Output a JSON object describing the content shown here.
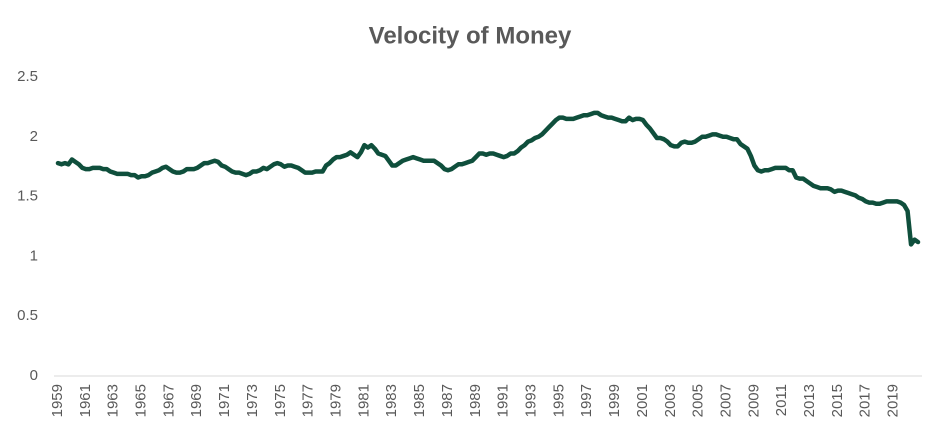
{
  "chart_data": {
    "type": "line",
    "title": "Velocity of Money",
    "categories": [
      "1959",
      null,
      null,
      null,
      null,
      null,
      null,
      null,
      "1961",
      null,
      null,
      null,
      null,
      null,
      null,
      null,
      "1963",
      null,
      null,
      null,
      null,
      null,
      null,
      null,
      "1965",
      null,
      null,
      null,
      null,
      null,
      null,
      null,
      "1967",
      null,
      null,
      null,
      null,
      null,
      null,
      null,
      "1969",
      null,
      null,
      null,
      null,
      null,
      null,
      null,
      "1971",
      null,
      null,
      null,
      null,
      null,
      null,
      null,
      "1973",
      null,
      null,
      null,
      null,
      null,
      null,
      null,
      "1975",
      null,
      null,
      null,
      null,
      null,
      null,
      null,
      "1977",
      null,
      null,
      null,
      null,
      null,
      null,
      null,
      "1979",
      null,
      null,
      null,
      null,
      null,
      null,
      null,
      "1981",
      null,
      null,
      null,
      null,
      null,
      null,
      null,
      "1983",
      null,
      null,
      null,
      null,
      null,
      null,
      null,
      "1985",
      null,
      null,
      null,
      null,
      null,
      null,
      null,
      "1987",
      null,
      null,
      null,
      null,
      null,
      null,
      null,
      "1989",
      null,
      null,
      null,
      null,
      null,
      null,
      null,
      "1991",
      null,
      null,
      null,
      null,
      null,
      null,
      null,
      "1993",
      null,
      null,
      null,
      null,
      null,
      null,
      null,
      "1995",
      null,
      null,
      null,
      null,
      null,
      null,
      null,
      "1997",
      null,
      null,
      null,
      null,
      null,
      null,
      null,
      "1999",
      null,
      null,
      null,
      null,
      null,
      null,
      null,
      "2001",
      null,
      null,
      null,
      null,
      null,
      null,
      null,
      "2003",
      null,
      null,
      null,
      null,
      null,
      null,
      null,
      "2005",
      null,
      null,
      null,
      null,
      null,
      null,
      null,
      "2007",
      null,
      null,
      null,
      null,
      null,
      null,
      null,
      "2009",
      null,
      null,
      null,
      null,
      null,
      null,
      null,
      "2011",
      null,
      null,
      null,
      null,
      null,
      null,
      null,
      "2013",
      null,
      null,
      null,
      null,
      null,
      null,
      null,
      "2015",
      null,
      null,
      null,
      null,
      null,
      null,
      null,
      "2017",
      null,
      null,
      null,
      null,
      null,
      null,
      null,
      "2019",
      null,
      null,
      null,
      null,
      null,
      null,
      null
    ],
    "series": [
      {
        "name": "Velocity of Money",
        "color": "#0f4f3c",
        "values": [
          1.78,
          1.77,
          1.78,
          1.77,
          1.81,
          1.79,
          1.77,
          1.74,
          1.73,
          1.73,
          1.74,
          1.74,
          1.74,
          1.73,
          1.73,
          1.71,
          1.7,
          1.69,
          1.69,
          1.69,
          1.69,
          1.68,
          1.68,
          1.66,
          1.67,
          1.67,
          1.68,
          1.7,
          1.71,
          1.72,
          1.74,
          1.75,
          1.73,
          1.71,
          1.7,
          1.7,
          1.71,
          1.73,
          1.73,
          1.73,
          1.74,
          1.76,
          1.78,
          1.78,
          1.79,
          1.8,
          1.79,
          1.76,
          1.75,
          1.73,
          1.71,
          1.7,
          1.7,
          1.69,
          1.68,
          1.69,
          1.71,
          1.71,
          1.72,
          1.74,
          1.73,
          1.75,
          1.77,
          1.78,
          1.77,
          1.75,
          1.76,
          1.76,
          1.75,
          1.74,
          1.72,
          1.7,
          1.7,
          1.7,
          1.71,
          1.71,
          1.71,
          1.76,
          1.78,
          1.81,
          1.83,
          1.83,
          1.84,
          1.85,
          1.87,
          1.85,
          1.83,
          1.87,
          1.93,
          1.91,
          1.93,
          1.9,
          1.86,
          1.85,
          1.84,
          1.8,
          1.76,
          1.76,
          1.78,
          1.8,
          1.81,
          1.82,
          1.83,
          1.82,
          1.81,
          1.8,
          1.8,
          1.8,
          1.8,
          1.78,
          1.76,
          1.73,
          1.72,
          1.73,
          1.75,
          1.77,
          1.77,
          1.78,
          1.79,
          1.8,
          1.83,
          1.86,
          1.86,
          1.85,
          1.86,
          1.86,
          1.85,
          1.84,
          1.83,
          1.84,
          1.86,
          1.86,
          1.88,
          1.91,
          1.93,
          1.96,
          1.97,
          1.99,
          2.0,
          2.02,
          2.05,
          2.08,
          2.11,
          2.14,
          2.16,
          2.16,
          2.15,
          2.15,
          2.15,
          2.16,
          2.17,
          2.18,
          2.18,
          2.19,
          2.2,
          2.2,
          2.18,
          2.17,
          2.16,
          2.16,
          2.15,
          2.14,
          2.13,
          2.13,
          2.16,
          2.14,
          2.15,
          2.15,
          2.14,
          2.1,
          2.07,
          2.03,
          1.99,
          1.99,
          1.98,
          1.96,
          1.93,
          1.92,
          1.92,
          1.95,
          1.96,
          1.95,
          1.95,
          1.96,
          1.98,
          2.0,
          2.0,
          2.01,
          2.02,
          2.02,
          2.01,
          2.0,
          2.0,
          1.99,
          1.98,
          1.98,
          1.94,
          1.92,
          1.9,
          1.84,
          1.76,
          1.72,
          1.71,
          1.72,
          1.72,
          1.73,
          1.74,
          1.74,
          1.74,
          1.74,
          1.72,
          1.72,
          1.66,
          1.65,
          1.65,
          1.63,
          1.61,
          1.59,
          1.58,
          1.57,
          1.57,
          1.57,
          1.56,
          1.54,
          1.55,
          1.55,
          1.54,
          1.53,
          1.52,
          1.51,
          1.49,
          1.48,
          1.46,
          1.45,
          1.45,
          1.44,
          1.44,
          1.45,
          1.46,
          1.46,
          1.46,
          1.46,
          1.45,
          1.43,
          1.38,
          1.1,
          1.14,
          1.12
        ]
      }
    ],
    "ylim": [
      0,
      2.5
    ],
    "yticks": [
      0,
      0.5,
      1,
      1.5,
      2,
      2.5
    ]
  }
}
